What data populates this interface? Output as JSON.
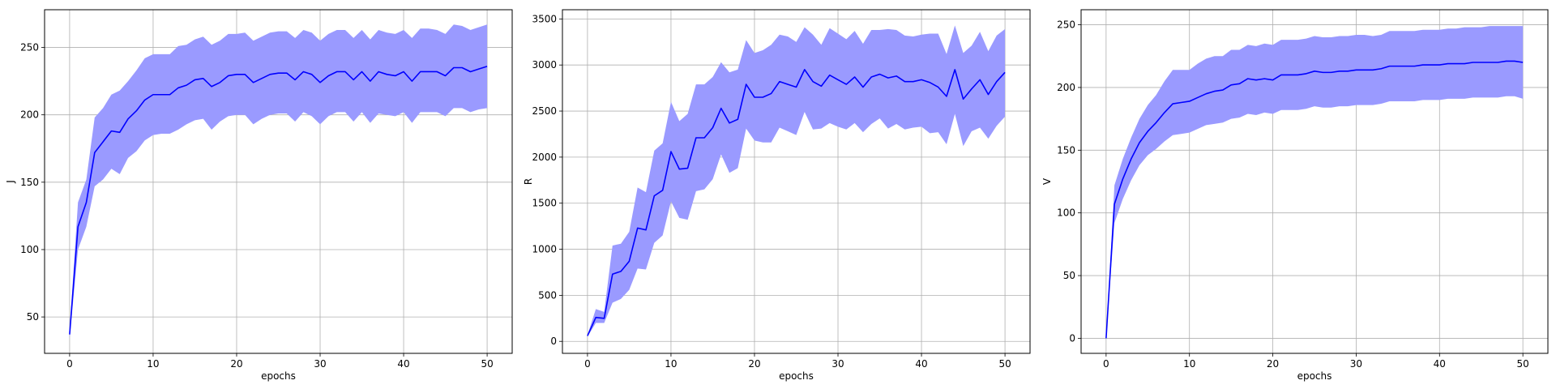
{
  "chart_data": [
    {
      "type": "line",
      "xlabel": "epochs",
      "ylabel": "J",
      "xlim": [
        -3,
        53
      ],
      "ylim": [
        23,
        278
      ],
      "xticks": [
        0,
        10,
        20,
        30,
        40,
        50
      ],
      "yticks": [
        50,
        100,
        150,
        200,
        250
      ],
      "grid": true,
      "line_color": "#0000ff",
      "band_color": "#9a9aff",
      "x": [
        0,
        1,
        2,
        3,
        4,
        5,
        6,
        7,
        8,
        9,
        10,
        11,
        12,
        13,
        14,
        15,
        16,
        17,
        18,
        19,
        20,
        21,
        22,
        23,
        24,
        25,
        26,
        27,
        28,
        29,
        30,
        31,
        32,
        33,
        34,
        35,
        36,
        37,
        38,
        39,
        40,
        41,
        42,
        43,
        44,
        45,
        46,
        47,
        48,
        49,
        50
      ],
      "series": [
        {
          "mean": [
            37,
            117,
            135,
            172,
            180,
            188,
            187,
            197,
            203,
            211,
            215,
            215,
            215,
            220,
            222,
            226,
            227,
            221,
            224,
            229,
            230,
            230,
            224,
            227,
            230,
            231,
            231,
            226,
            232,
            230,
            224,
            229,
            232,
            232,
            226,
            232,
            225,
            232,
            230,
            229,
            232,
            225,
            232,
            232,
            232,
            229,
            235,
            235,
            232,
            234,
            236
          ],
          "upper": [
            40,
            135,
            152,
            198,
            205,
            215,
            218,
            225,
            233,
            242,
            245,
            245,
            245,
            251,
            252,
            256,
            258,
            252,
            255,
            260,
            260,
            261,
            255,
            258,
            261,
            262,
            262,
            257,
            263,
            261,
            255,
            260,
            263,
            263,
            257,
            263,
            256,
            263,
            261,
            260,
            263,
            257,
            264,
            264,
            263,
            260,
            267,
            266,
            263,
            265,
            267
          ],
          "lower": [
            34,
            100,
            117,
            147,
            152,
            160,
            156,
            168,
            173,
            181,
            185,
            186,
            186,
            189,
            193,
            196,
            197,
            189,
            195,
            199,
            200,
            200,
            193,
            197,
            200,
            201,
            201,
            195,
            202,
            199,
            193,
            199,
            202,
            202,
            195,
            202,
            194,
            201,
            200,
            199,
            202,
            194,
            202,
            202,
            202,
            199,
            205,
            205,
            202,
            204,
            205
          ]
        }
      ]
    },
    {
      "type": "line",
      "xlabel": "epochs",
      "ylabel": "R",
      "xlim": [
        -3,
        53
      ],
      "ylim": [
        -130,
        3600
      ],
      "xticks": [
        0,
        10,
        20,
        30,
        40,
        50
      ],
      "yticks": [
        0,
        500,
        1000,
        1500,
        2000,
        2500,
        3000,
        3500
      ],
      "grid": true,
      "line_color": "#0000ff",
      "band_color": "#9a9aff",
      "x": [
        0,
        1,
        2,
        3,
        4,
        5,
        6,
        7,
        8,
        9,
        10,
        11,
        12,
        13,
        14,
        15,
        16,
        17,
        18,
        19,
        20,
        21,
        22,
        23,
        24,
        25,
        26,
        27,
        28,
        29,
        30,
        31,
        32,
        33,
        34,
        35,
        36,
        37,
        38,
        39,
        40,
        41,
        42,
        43,
        44,
        45,
        46,
        47,
        48,
        49,
        50
      ],
      "series": [
        {
          "mean": [
            60,
            260,
            250,
            730,
            760,
            870,
            1230,
            1210,
            1580,
            1640,
            2060,
            1870,
            1880,
            2210,
            2210,
            2320,
            2530,
            2370,
            2410,
            2790,
            2650,
            2650,
            2690,
            2820,
            2790,
            2760,
            2950,
            2820,
            2770,
            2890,
            2840,
            2790,
            2870,
            2760,
            2870,
            2900,
            2860,
            2880,
            2820,
            2820,
            2840,
            2810,
            2760,
            2660,
            2950,
            2630,
            2740,
            2840,
            2680,
            2820,
            2920
          ],
          "upper": [
            70,
            350,
            320,
            1040,
            1060,
            1190,
            1670,
            1620,
            2070,
            2150,
            2600,
            2390,
            2470,
            2790,
            2790,
            2870,
            3030,
            2920,
            2950,
            3270,
            3130,
            3160,
            3220,
            3330,
            3310,
            3250,
            3410,
            3330,
            3220,
            3400,
            3340,
            3280,
            3370,
            3230,
            3380,
            3380,
            3390,
            3380,
            3320,
            3310,
            3330,
            3340,
            3340,
            3120,
            3430,
            3130,
            3210,
            3360,
            3150,
            3320,
            3390
          ],
          "lower": [
            50,
            200,
            200,
            420,
            460,
            560,
            790,
            780,
            1070,
            1150,
            1520,
            1340,
            1320,
            1630,
            1650,
            1760,
            2030,
            1830,
            1880,
            2310,
            2180,
            2160,
            2160,
            2320,
            2280,
            2240,
            2490,
            2300,
            2310,
            2370,
            2330,
            2300,
            2370,
            2270,
            2360,
            2420,
            2310,
            2360,
            2300,
            2320,
            2330,
            2260,
            2270,
            2140,
            2470,
            2120,
            2280,
            2320,
            2200,
            2340,
            2440
          ]
        }
      ]
    },
    {
      "type": "line",
      "xlabel": "epochs",
      "ylabel": "V",
      "xlim": [
        -3,
        53
      ],
      "ylim": [
        -12,
        262
      ],
      "xticks": [
        0,
        10,
        20,
        30,
        40,
        50
      ],
      "yticks": [
        0,
        50,
        100,
        150,
        200,
        250
      ],
      "grid": true,
      "line_color": "#0000ff",
      "band_color": "#9a9aff",
      "x": [
        0,
        1,
        2,
        3,
        4,
        5,
        6,
        7,
        8,
        9,
        10,
        11,
        12,
        13,
        14,
        15,
        16,
        17,
        18,
        19,
        20,
        21,
        22,
        23,
        24,
        25,
        26,
        27,
        28,
        29,
        30,
        31,
        32,
        33,
        34,
        35,
        36,
        37,
        38,
        39,
        40,
        41,
        42,
        43,
        44,
        45,
        46,
        47,
        48,
        49,
        50
      ],
      "series": [
        {
          "mean": [
            0,
            107,
            127,
            143,
            156,
            165,
            172,
            180,
            187,
            188,
            189,
            192,
            195,
            197,
            198,
            202,
            203,
            207,
            206,
            207,
            206,
            210,
            210,
            210,
            211,
            213,
            212,
            212,
            213,
            213,
            214,
            214,
            214,
            215,
            217,
            217,
            217,
            217,
            218,
            218,
            218,
            219,
            219,
            219,
            220,
            220,
            220,
            220,
            221,
            221,
            220
          ],
          "upper": [
            0,
            122,
            143,
            160,
            175,
            186,
            194,
            205,
            214,
            214,
            214,
            219,
            223,
            225,
            225,
            230,
            230,
            234,
            233,
            235,
            234,
            238,
            238,
            238,
            239,
            241,
            240,
            240,
            241,
            241,
            242,
            242,
            241,
            242,
            245,
            245,
            245,
            245,
            246,
            246,
            246,
            247,
            247,
            248,
            248,
            248,
            249,
            249,
            249,
            249,
            249
          ],
          "lower": [
            0,
            92,
            111,
            126,
            138,
            146,
            151,
            157,
            162,
            163,
            164,
            167,
            170,
            171,
            172,
            175,
            176,
            179,
            178,
            180,
            179,
            182,
            182,
            182,
            183,
            185,
            184,
            184,
            185,
            185,
            186,
            186,
            186,
            187,
            189,
            189,
            189,
            189,
            190,
            190,
            190,
            191,
            191,
            191,
            192,
            192,
            192,
            192,
            193,
            193,
            191
          ]
        }
      ]
    }
  ]
}
